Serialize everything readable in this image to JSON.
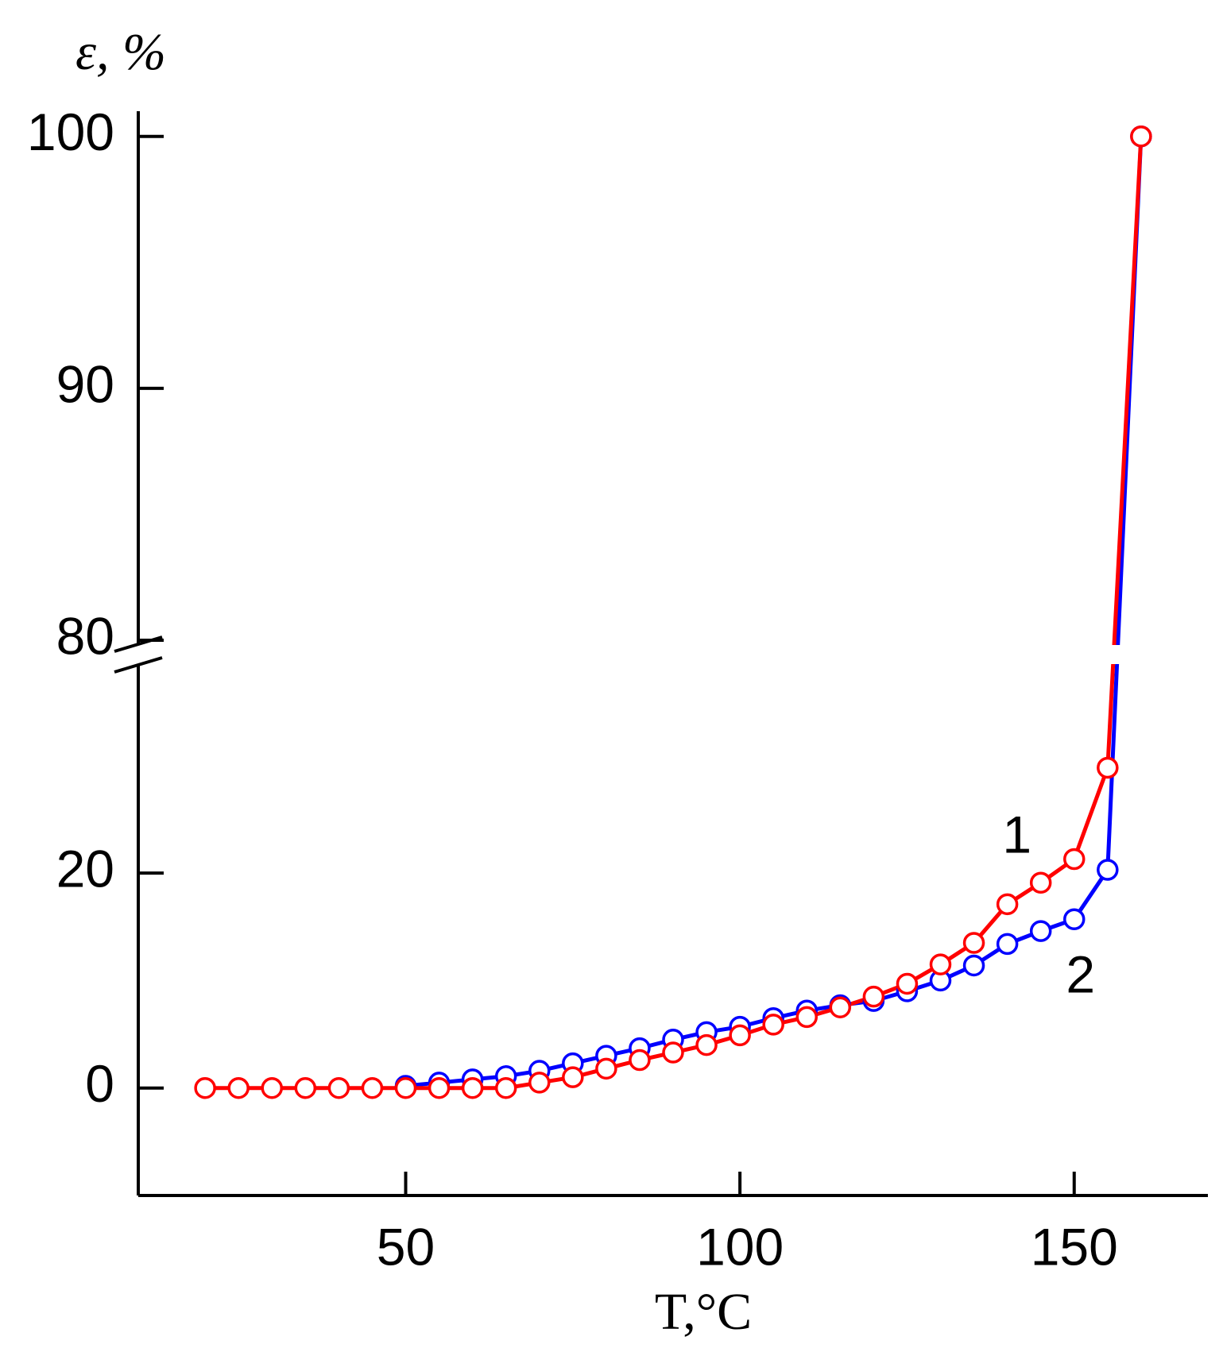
{
  "chart_data": {
    "type": "line",
    "x_label": "T,°C",
    "y_label": "ε, %",
    "xlim": [
      10,
      170
    ],
    "xticks": [
      50,
      100,
      150
    ],
    "ylim": [
      -10,
      101
    ],
    "yticks": [
      0,
      20,
      80,
      90,
      100
    ],
    "axis_break": [
      39,
      80
    ],
    "series": [
      {
        "name": "2",
        "color": "#0000ff",
        "x": [
          50,
          55,
          60,
          65,
          70,
          75,
          80,
          85,
          90,
          95,
          100,
          105,
          110,
          115,
          120,
          125,
          130,
          135,
          140,
          145,
          150,
          155,
          160
        ],
        "values": [
          0.2,
          0.5,
          0.8,
          1.1,
          1.6,
          2.3,
          3.0,
          3.7,
          4.5,
          5.2,
          5.7,
          6.5,
          7.2,
          7.7,
          8.1,
          9.0,
          10.0,
          11.4,
          13.4,
          14.6,
          15.7,
          20.3,
          100
        ]
      },
      {
        "name": "1",
        "color": "#ff0000",
        "x": [
          20,
          25,
          30,
          35,
          40,
          45,
          50,
          55,
          60,
          65,
          70,
          75,
          80,
          85,
          90,
          95,
          100,
          105,
          110,
          115,
          120,
          125,
          130,
          135,
          140,
          145,
          150,
          155,
          160
        ],
        "values": [
          0,
          0,
          0,
          0,
          0,
          0,
          0,
          0,
          0,
          0,
          0.5,
          1.0,
          1.8,
          2.6,
          3.3,
          4.0,
          4.9,
          5.9,
          6.6,
          7.5,
          8.5,
          9.7,
          11.5,
          13.5,
          17.1,
          19.1,
          21.3,
          29.8,
          100
        ]
      }
    ]
  }
}
